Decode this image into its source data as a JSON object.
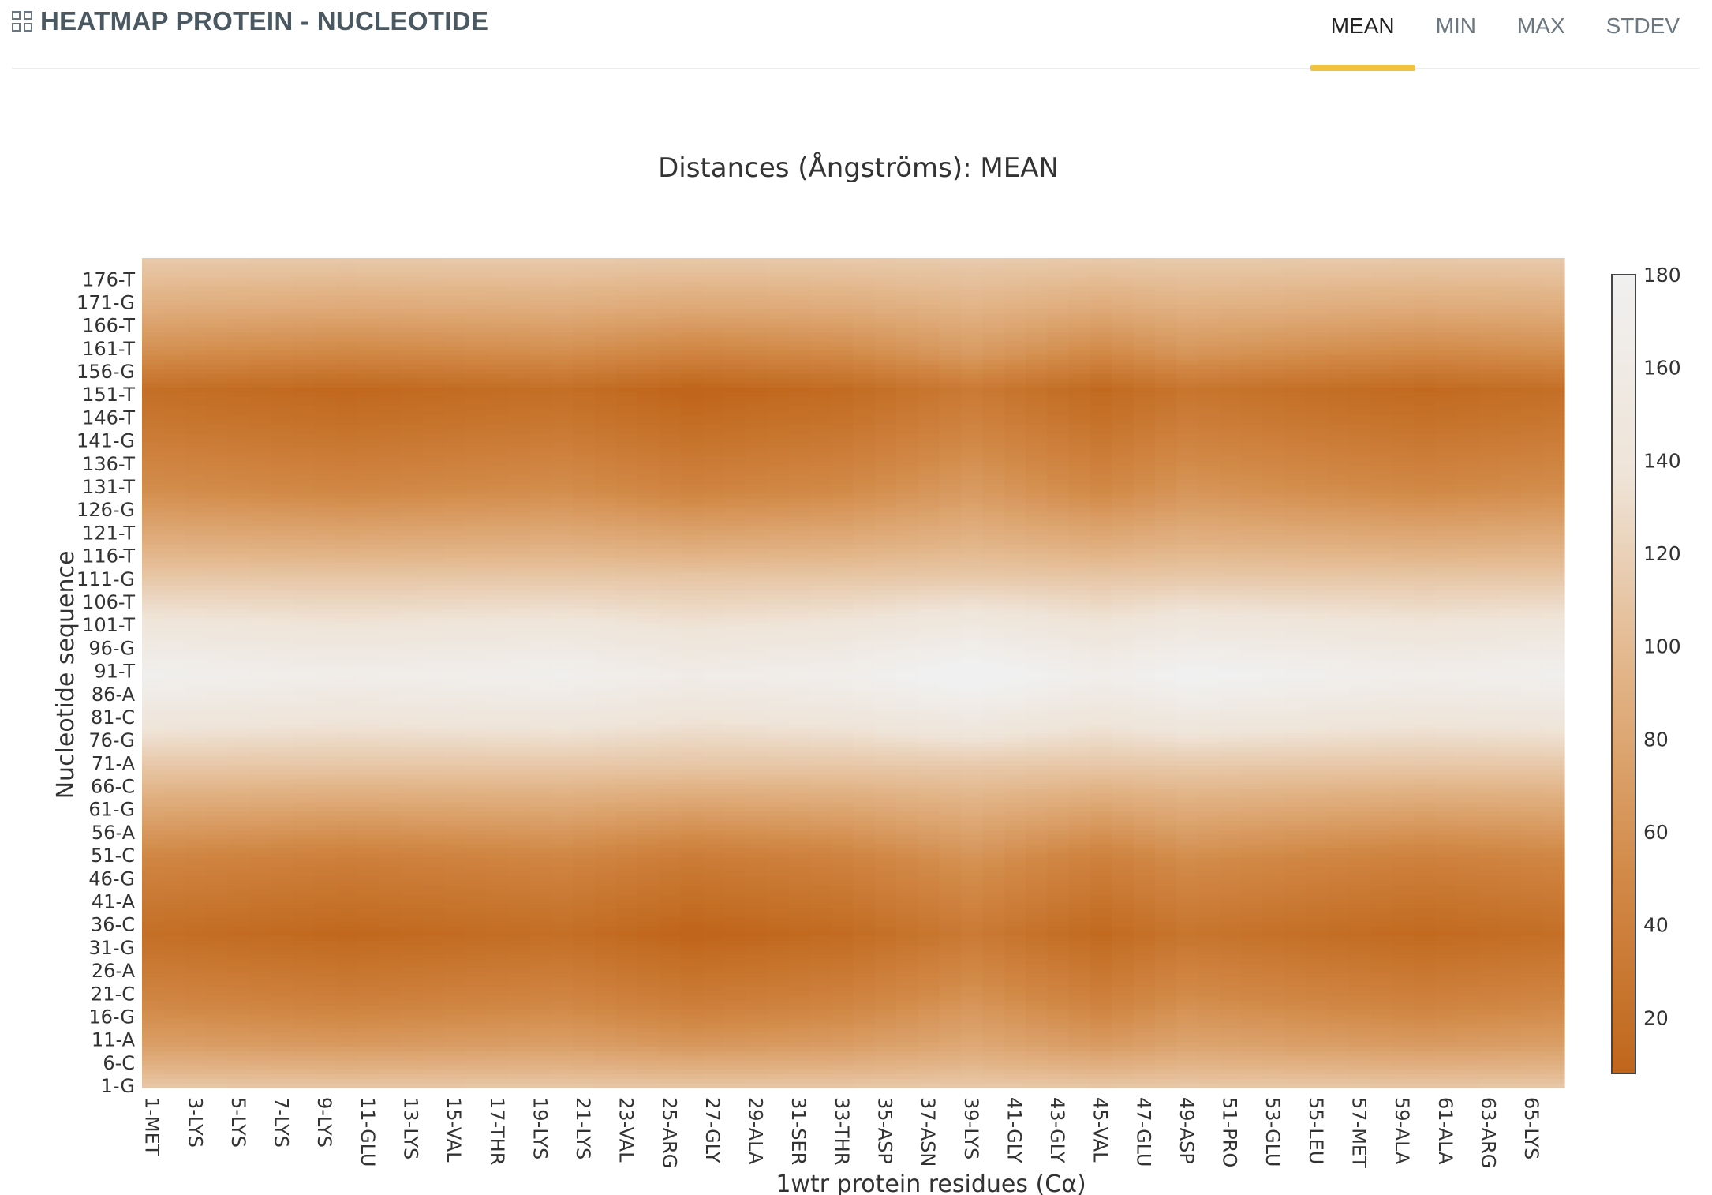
{
  "header": {
    "title": "HEATMAP PROTEIN - NUCLEOTIDE",
    "icon": "qr-code-icon",
    "tabs": [
      {
        "label": "MEAN",
        "active": true
      },
      {
        "label": "MIN",
        "active": false
      },
      {
        "label": "MAX",
        "active": false
      },
      {
        "label": "STDEV",
        "active": false
      }
    ],
    "accent_color": "#f0c23f"
  },
  "chart_data": {
    "type": "heatmap",
    "title": "Distances (Ångströms): MEAN",
    "xlabel": "1wtr protein residues (Cα)",
    "ylabel": "Nucleotide sequence",
    "x_tick_labels": [
      "1-MET",
      "3-LYS",
      "5-LYS",
      "7-LYS",
      "9-LYS",
      "11-GLU",
      "13-LYS",
      "15-VAL",
      "17-THR",
      "19-LYS",
      "21-LYS",
      "23-VAL",
      "25-ARG",
      "27-GLY",
      "29-ALA",
      "31-SER",
      "33-THR",
      "35-ASP",
      "37-ASN",
      "39-LYS",
      "41-GLY",
      "43-GLY",
      "45-VAL",
      "47-GLU",
      "49-ASP",
      "51-PRO",
      "53-GLU",
      "55-LEU",
      "57-MET",
      "59-ALA",
      "61-ALA",
      "63-ARG",
      "65-LYS"
    ],
    "y_tick_labels": [
      "1-G",
      "6-C",
      "11-A",
      "16-G",
      "21-C",
      "26-A",
      "31-G",
      "36-C",
      "41-A",
      "46-G",
      "51-C",
      "56-A",
      "61-G",
      "66-C",
      "71-A",
      "76-G",
      "81-C",
      "86-A",
      "91-T",
      "96-G",
      "101-T",
      "106-T",
      "111-G",
      "116-T",
      "121-T",
      "126-G",
      "131-T",
      "136-T",
      "141-G",
      "146-T",
      "151-T",
      "156-G",
      "161-T",
      "166-T",
      "171-G",
      "176-T"
    ],
    "x_count": 66,
    "y_count": 180,
    "y_profile": {
      "nucleotide": [
        1,
        10,
        20,
        34,
        50,
        70,
        90,
        110,
        130,
        145,
        152,
        160,
        170,
        180
      ],
      "distance": [
        110,
        72,
        45,
        18,
        45,
        110,
        175,
        115,
        55,
        28,
        18,
        55,
        88,
        112
      ]
    },
    "x_profile": {
      "residue": [
        1,
        10,
        20,
        26,
        33,
        39,
        45,
        49,
        55,
        60,
        66
      ],
      "distance_offset": [
        0,
        -8,
        0,
        -12,
        -4,
        14,
        -6,
        8,
        0,
        -6,
        0
      ]
    },
    "colorscale": {
      "min": 8,
      "max": 180,
      "ticks": [
        20,
        40,
        60,
        80,
        100,
        120,
        140,
        160,
        180
      ],
      "colors": [
        "#c0661c",
        "#d28a48",
        "#e2b487",
        "#efe4d8",
        "#f0f0f0"
      ]
    }
  }
}
